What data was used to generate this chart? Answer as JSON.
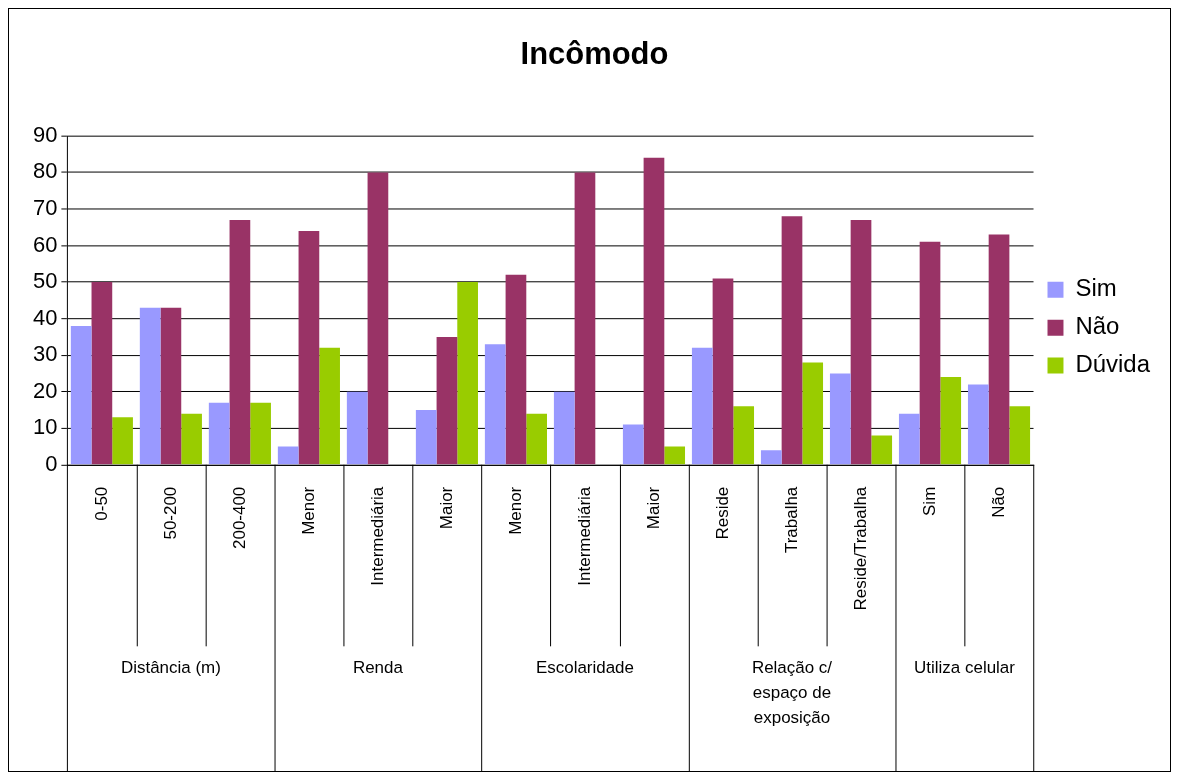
{
  "chart_data": {
    "type": "bar",
    "title": "Incômodo",
    "categories": [
      "0-50",
      "50-200",
      "200-400",
      "Menor",
      "Intermediária",
      "Maior",
      "Menor",
      "Intermediária",
      "Maior",
      "Reside",
      "Trabalha",
      "Reside/Trabalha",
      "Sim",
      "Não"
    ],
    "series": [
      {
        "name": "Sim",
        "color": "#9999ff",
        "values": [
          38,
          43,
          17,
          5,
          20,
          15,
          33,
          20,
          11,
          32,
          4,
          25,
          14,
          22
        ]
      },
      {
        "name": "Não",
        "color": "#993366",
        "values": [
          50,
          43,
          67,
          64,
          80,
          35,
          52,
          80,
          84,
          51,
          68,
          67,
          61,
          63
        ]
      },
      {
        "name": "Dúvida",
        "color": "#99cc00",
        "values": [
          13,
          14,
          17,
          32,
          0,
          50,
          14,
          0,
          5,
          16,
          28,
          8,
          24,
          16
        ]
      }
    ],
    "annotations": [
      "Distância (m)",
      "Renda",
      "Escolaridade",
      "Relação c/ espaço de exposição",
      "Utiliza celular"
    ],
    "ylim": [
      0,
      90
    ],
    "yticks": [
      0,
      10,
      20,
      30,
      40,
      50,
      60,
      70,
      80,
      90
    ],
    "grid": "y",
    "legend": "right"
  }
}
